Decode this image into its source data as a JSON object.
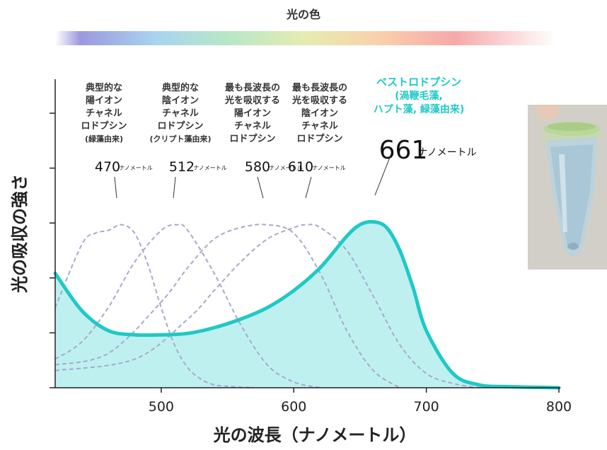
{
  "spectrum_title": "光の色",
  "colors": {
    "accent": "#1fc9c6",
    "fill": "#bff0f0",
    "dashed": "#a9a9cc",
    "axis": "#222222"
  },
  "chart_data": {
    "type": "line",
    "xlabel": "光の波長（ナノメートル）",
    "ylabel": "光の吸収の強さ",
    "xlim": [
      420,
      800
    ],
    "ylim": [
      0,
      1
    ],
    "x_ticks": [
      500,
      600,
      700,
      800
    ],
    "y_tick_marks": 6,
    "y_tick_labels_shown": false,
    "grid": false,
    "series": [
      {
        "name": "ベストロドプシン",
        "style": "solid",
        "filled": true,
        "peak_nm": 661,
        "x": [
          420,
          440,
          460,
          480,
          500,
          520,
          540,
          560,
          580,
          600,
          620,
          640,
          650,
          660,
          670,
          680,
          690,
          700,
          720,
          740,
          760,
          780,
          800
        ],
        "y": [
          0.4,
          0.27,
          0.2,
          0.185,
          0.185,
          0.19,
          0.21,
          0.24,
          0.28,
          0.34,
          0.42,
          0.53,
          0.57,
          0.58,
          0.56,
          0.48,
          0.35,
          0.2,
          0.05,
          0.01,
          0.004,
          0.002,
          0.0
        ]
      },
      {
        "style": "dashed",
        "peak_nm": 470,
        "x": [
          420,
          440,
          450,
          460,
          470,
          480,
          490,
          500,
          510,
          520,
          530,
          540,
          550,
          560,
          570
        ],
        "y": [
          0.28,
          0.5,
          0.54,
          0.55,
          0.57,
          0.54,
          0.43,
          0.28,
          0.15,
          0.07,
          0.03,
          0.01,
          0.005,
          0.002,
          0.0
        ]
      },
      {
        "style": "dashed",
        "peak_nm": 512,
        "x": [
          420,
          440,
          460,
          480,
          500,
          512,
          520,
          540,
          560,
          580,
          600,
          620
        ],
        "y": [
          0.1,
          0.16,
          0.28,
          0.44,
          0.55,
          0.57,
          0.55,
          0.4,
          0.22,
          0.08,
          0.02,
          0.0
        ]
      },
      {
        "style": "dashed",
        "peak_nm": 580,
        "x": [
          420,
          460,
          500,
          520,
          540,
          560,
          580,
          600,
          620,
          640,
          660,
          680
        ],
        "y": [
          0.08,
          0.12,
          0.3,
          0.42,
          0.52,
          0.56,
          0.57,
          0.54,
          0.4,
          0.2,
          0.06,
          0.0
        ]
      },
      {
        "style": "dashed",
        "peak_nm": 610,
        "x": [
          420,
          480,
          520,
          540,
          560,
          580,
          600,
          610,
          620,
          640,
          660,
          680,
          700,
          720,
          740
        ],
        "y": [
          0.06,
          0.1,
          0.24,
          0.34,
          0.44,
          0.52,
          0.56,
          0.57,
          0.56,
          0.48,
          0.32,
          0.15,
          0.05,
          0.015,
          0.0
        ]
      }
    ]
  },
  "annotations": [
    {
      "lines": [
        "典型的な",
        "陽イオン",
        "チャネル",
        "ロドプシン",
        "(緑藻由来)"
      ],
      "value": "470",
      "unit": "ナノメートル"
    },
    {
      "lines": [
        "典型的な",
        "陰イオン",
        "チャネル",
        "ロドプシン",
        "(クリプト藻由来)"
      ],
      "value": "512",
      "unit": "ナノメートル"
    },
    {
      "lines": [
        "最も長波長の",
        "光を吸収する",
        "陽イオン",
        "チャネル",
        "ロドプシン"
      ],
      "value": "580",
      "unit": "ナノメートル"
    },
    {
      "lines": [
        "最も長波長の",
        "光を吸収する",
        "陰イオン",
        "チャネル",
        "ロドプシン"
      ],
      "value": "610",
      "unit": "ナノメートル"
    },
    {
      "lines": [
        "ベストロドプシン",
        "(渦鞭毛藻,",
        "ハプト藻, 緑藻由来)"
      ],
      "value": "661",
      "unit": "ナノメートル"
    }
  ]
}
